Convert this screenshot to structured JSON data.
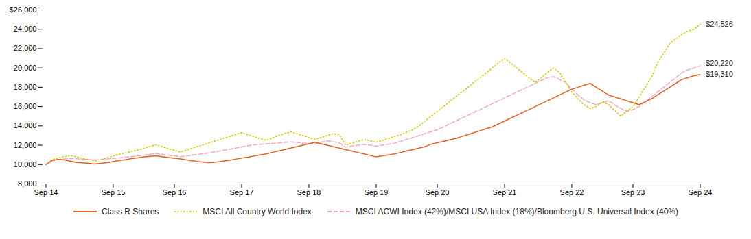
{
  "chart_data": {
    "type": "line",
    "categories": [
      "Sep 14",
      null,
      null,
      null,
      null,
      null,
      null,
      null,
      null,
      null,
      null,
      "Sep 15",
      null,
      null,
      null,
      null,
      null,
      null,
      null,
      null,
      null,
      "Sep 16",
      null,
      null,
      null,
      null,
      null,
      null,
      null,
      null,
      null,
      null,
      "Sep 17",
      null,
      null,
      null,
      null,
      null,
      null,
      null,
      null,
      null,
      null,
      "Sep 18",
      null,
      null,
      null,
      null,
      null,
      null,
      null,
      null,
      null,
      null,
      "Sep 19",
      null,
      null,
      null,
      null,
      null,
      null,
      null,
      null,
      null,
      "Sep 20",
      null,
      null,
      null,
      null,
      null,
      null,
      null,
      null,
      null,
      null,
      "Sep 21",
      null,
      null,
      null,
      null,
      null,
      null,
      null,
      null,
      null,
      null,
      "Sep 22",
      null,
      null,
      null,
      null,
      null,
      null,
      null,
      null,
      null,
      "Sep 23",
      null,
      null,
      null,
      null,
      null,
      null,
      null,
      null,
      null,
      null,
      "Sep 24"
    ],
    "series": [
      {
        "name": "Class R Shares",
        "color": "#E06020",
        "line_style": "solid",
        "values": [
          10000,
          10420,
          10530,
          10480,
          10350,
          10210,
          10180,
          10120,
          10050,
          10130,
          10200,
          10310,
          10430,
          10500,
          10620,
          10700,
          10800,
          10850,
          10900,
          10820,
          10730,
          10650,
          10580,
          10480,
          10390,
          10300,
          10240,
          10200,
          10260,
          10360,
          10450,
          10560,
          10680,
          10770,
          10880,
          10990,
          11100,
          11250,
          11400,
          11550,
          11700,
          11850,
          12000,
          12150,
          12300,
          12150,
          12000,
          11850,
          11700,
          11550,
          11400,
          11250,
          11100,
          10950,
          10800,
          10900,
          11000,
          11100,
          11250,
          11400,
          11550,
          11700,
          11850,
          12100,
          12250,
          12400,
          12550,
          12700,
          12900,
          13100,
          13300,
          13500,
          13700,
          13900,
          14200,
          14500,
          14800,
          15100,
          15400,
          15700,
          16000,
          16300,
          16600,
          16900,
          17200,
          17500,
          17800,
          18000,
          18200,
          18400,
          18000,
          17600,
          17200,
          17000,
          16800,
          16600,
          16400,
          16200,
          16500,
          16800,
          17200,
          17600,
          18000,
          18400,
          18800,
          19000,
          19200,
          19310
        ]
      },
      {
        "name": "MSCI All Country World Index",
        "color": "#D4C800",
        "line_style": "dotted",
        "values": [
          10000,
          10520,
          10680,
          10820,
          10940,
          10800,
          10650,
          10500,
          10350,
          10530,
          10710,
          10890,
          11070,
          11200,
          11350,
          11500,
          11680,
          11860,
          12040,
          11850,
          11660,
          11480,
          11300,
          11500,
          11700,
          11900,
          12100,
          12300,
          12500,
          12700,
          12900,
          13100,
          13300,
          13100,
          12900,
          12700,
          12500,
          12750,
          13000,
          13200,
          13400,
          13200,
          13000,
          12800,
          12600,
          12800,
          13000,
          13200,
          13100,
          12000,
          12200,
          12400,
          12600,
          12450,
          12300,
          12500,
          12700,
          12900,
          13100,
          13350,
          13600,
          14000,
          14500,
          15000,
          15500,
          16000,
          16500,
          17000,
          17500,
          18000,
          18500,
          19000,
          19500,
          20000,
          20500,
          21000,
          20500,
          20000,
          19500,
          19000,
          18500,
          19000,
          19500,
          20000,
          19500,
          18500,
          17500,
          16800,
          16200,
          15800,
          16000,
          16500,
          16200,
          15600,
          15000,
          15500,
          16000,
          17000,
          18000,
          19000,
          20500,
          21500,
          22500,
          23000,
          23500,
          23800,
          24000,
          24526
        ]
      },
      {
        "name": "MSCI ACWI Index (42%)/MSCI USA Index (18%)/Bloomberg U.S. Universal Index (40%)",
        "color": "#F0A8C0",
        "line_style": "dashed",
        "values": [
          10000,
          10400,
          10520,
          10580,
          10640,
          10600,
          10560,
          10520,
          10480,
          10530,
          10580,
          10640,
          10700,
          10760,
          10820,
          10900,
          10980,
          11060,
          11140,
          11060,
          10980,
          10900,
          10820,
          10900,
          10980,
          11060,
          11150,
          11250,
          11360,
          11470,
          11590,
          11700,
          11820,
          11940,
          12060,
          12100,
          12140,
          12180,
          12220,
          12280,
          12340,
          12280,
          12220,
          12180,
          12140,
          12300,
          12460,
          12350,
          12240,
          11800,
          11900,
          12000,
          12100,
          12000,
          11900,
          12000,
          12100,
          12200,
          12400,
          12600,
          12800,
          13000,
          13200,
          13400,
          13600,
          13900,
          14200,
          14500,
          14800,
          15100,
          15400,
          15700,
          16000,
          16300,
          16600,
          16900,
          17200,
          17500,
          17800,
          18100,
          18400,
          18700,
          19000,
          19100,
          18800,
          18500,
          17800,
          17200,
          16700,
          16400,
          16200,
          16400,
          16600,
          16200,
          15800,
          15500,
          15700,
          16000,
          16500,
          17000,
          17500,
          18000,
          18500,
          19000,
          19500,
          19800,
          20000,
          20220
        ]
      }
    ],
    "ylim": [
      8000,
      26000
    ],
    "yticks": [
      {
        "value": 8000,
        "label": "8,000"
      },
      {
        "value": 10000,
        "label": "10,000"
      },
      {
        "value": 12000,
        "label": "12,000"
      },
      {
        "value": 14000,
        "label": "14,000"
      },
      {
        "value": 16000,
        "label": "16,000"
      },
      {
        "value": 18000,
        "label": "18,000"
      },
      {
        "value": 20000,
        "label": "20,000"
      },
      {
        "value": 22000,
        "label": "22,000"
      },
      {
        "value": 24000,
        "label": "24,000"
      },
      {
        "value": 26000,
        "label": "$26,000"
      }
    ],
    "annotations": [
      {
        "text": "$24,526",
        "y": 24526
      },
      {
        "text": "$20,220",
        "y": 20500
      },
      {
        "text": "$19,310",
        "y": 19310
      }
    ],
    "grid": false,
    "legend": "bottom"
  }
}
